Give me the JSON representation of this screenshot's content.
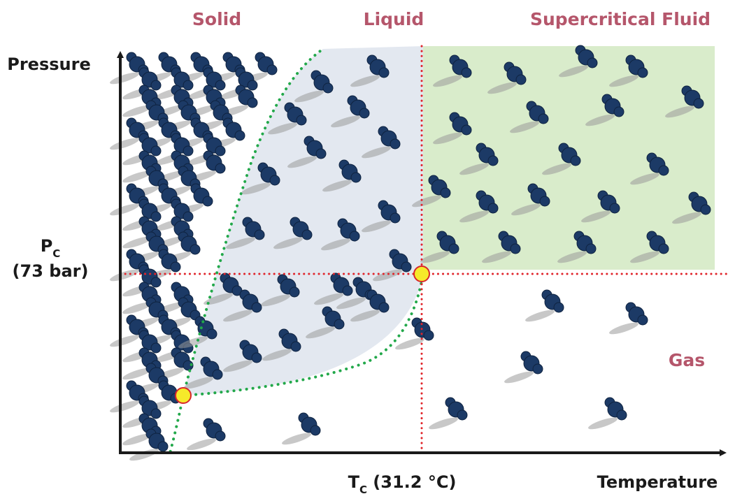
{
  "phases": {
    "solid": "Solid",
    "liquid": "Liquid",
    "supercritical": "Supercritical Fluid",
    "gas": "Gas"
  },
  "axes": {
    "y_label": "Pressure",
    "x_label": "Temperature"
  },
  "critical_point": {
    "pressure_symbol": "P",
    "pressure_subscript": "C",
    "pressure_value": "(73 bar)",
    "temperature_symbol": "T",
    "temperature_subscript": "C",
    "temperature_value": " (31.2 °C)"
  },
  "colors": {
    "phase_label": "#b5566b",
    "supercritical_fill": "#d9eccb",
    "liquid_fill": "#e3e8f0",
    "phase_boundary": "#22a84a",
    "critical_lines": "#e0242a",
    "point_fill": "#f6ea2a",
    "point_stroke": "#d8262b",
    "molecule": "#1c3a66",
    "shadow": "#9a9a9a"
  },
  "icons": {
    "molecule": "co2-molecule-icon",
    "triple_point": "triple-point-marker",
    "critical_point": "critical-point-marker"
  }
}
